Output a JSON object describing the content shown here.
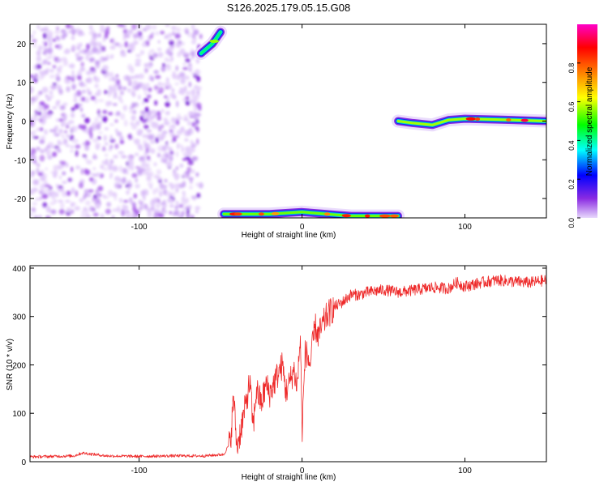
{
  "title": "S126.2025.179.05.15.G08",
  "chart_data": [
    {
      "type": "heatmap",
      "xlabel": "Height of straight line (km)",
      "ylabel": "Frequency (Hz)",
      "xlim": [
        -167,
        150
      ],
      "ylim": [
        -25,
        25
      ],
      "xticks": [
        -100,
        0,
        100
      ],
      "yticks": [
        -20,
        -10,
        0,
        10,
        20
      ],
      "colorbar": {
        "label": "Normalized spectral amplitude",
        "range": [
          0,
          1
        ],
        "ticks": [
          0.0,
          0.2,
          0.4,
          0.6,
          0.8
        ],
        "colors": [
          "#e8d8fc",
          "#8a2be2",
          "#0000ff",
          "#00ffff",
          "#00ff00",
          "#ffff00",
          "#ff8000",
          "#ff0000",
          "#ff00c8"
        ]
      },
      "features": [
        {
          "name": "noise",
          "x_range": [
            -167,
            -62
          ],
          "freq_range": [
            -25,
            25
          ],
          "amplitude": 0.15
        },
        {
          "name": "tone",
          "points": [
            [
              -62,
              17.5
            ],
            [
              -55,
              20
            ],
            [
              -50,
              23
            ]
          ],
          "amplitude": 0.7
        },
        {
          "name": "tone",
          "points": [
            [
              -48,
              -24
            ],
            [
              -20,
              -24
            ],
            [
              0,
              -23.5
            ],
            [
              30,
              -24.5
            ],
            [
              59,
              -24.5
            ]
          ],
          "amplitude": 0.9
        },
        {
          "name": "tone",
          "points": [
            [
              59,
              0
            ],
            [
              68,
              -0.5
            ],
            [
              80,
              -1
            ],
            [
              90,
              0.3
            ],
            [
              100,
              0.6
            ],
            [
              120,
              0.4
            ],
            [
              150,
              0
            ]
          ],
          "amplitude": 0.95
        }
      ]
    },
    {
      "type": "line",
      "xlabel": "Height of straight line (km)",
      "ylabel": "SNR (10 * v/v)",
      "xlim": [
        -167,
        150
      ],
      "ylim": [
        0,
        405
      ],
      "xticks": [
        -100,
        0,
        100
      ],
      "yticks": [
        0,
        100,
        200,
        300,
        400
      ],
      "color": "#ee2a2a",
      "x": [
        -167,
        -140,
        -135,
        -120,
        -100,
        -80,
        -60,
        -48,
        -44,
        -42,
        -40,
        -38,
        -35,
        -32,
        -30,
        -28,
        -25,
        -22,
        -20,
        -15,
        -12,
        -10,
        -8,
        -5,
        -3,
        -1,
        0,
        2,
        5,
        8,
        10,
        15,
        20,
        25,
        30,
        35,
        40,
        50,
        60,
        70,
        80,
        90,
        95,
        100,
        110,
        120,
        130,
        140,
        150
      ],
      "y": [
        10,
        12,
        18,
        12,
        11,
        12,
        12,
        15,
        40,
        135,
        30,
        60,
        110,
        165,
        70,
        150,
        120,
        160,
        140,
        180,
        200,
        145,
        160,
        190,
        155,
        260,
        60,
        230,
        200,
        280,
        260,
        300,
        320,
        330,
        345,
        345,
        350,
        355,
        350,
        355,
        360,
        358,
        370,
        362,
        370,
        375,
        372,
        370,
        375
      ]
    }
  ]
}
